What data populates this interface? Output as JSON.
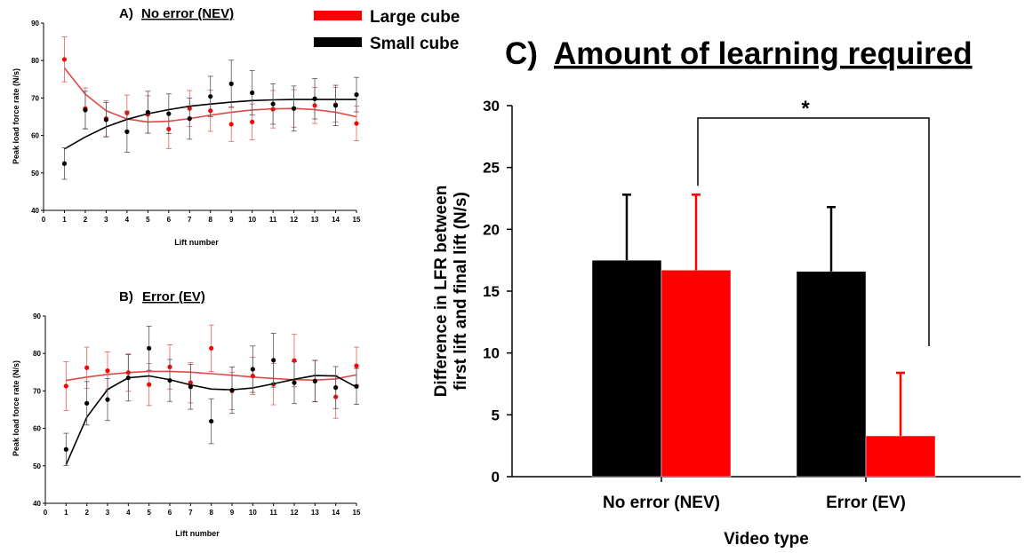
{
  "legend": {
    "entries": [
      {
        "label": "Large cube",
        "color": "#ff0000"
      },
      {
        "label": "Small cube",
        "color": "#000000"
      }
    ],
    "placement": "top-center"
  },
  "colors": {
    "large": "#ff0000",
    "small": "#000000",
    "large_fit": "#e04848"
  },
  "chart_data": [
    {
      "type": "scatter",
      "panel_letter": "A)",
      "title": "No error (NEV)",
      "xlabel": "Lift number",
      "ylabel": "Peak load force rate (N/s)",
      "xlim": [
        0,
        15
      ],
      "ylim": [
        40,
        90
      ],
      "xticks": [
        "0",
        "1",
        "2",
        "3",
        "4",
        "5",
        "6",
        "7",
        "8",
        "9",
        "10",
        "11",
        "12",
        "13",
        "14",
        "15"
      ],
      "yticks": [
        "40",
        "50",
        "60",
        "70",
        "80",
        "90"
      ],
      "x": [
        1,
        2,
        3,
        4,
        5,
        6,
        7,
        8,
        9,
        10,
        11,
        12,
        13,
        14,
        15
      ],
      "series": [
        {
          "name": "Large cube",
          "color": "#ff0000",
          "values": [
            80.3,
            67.2,
            64.5,
            66.0,
            65.6,
            61.7,
            67.2,
            66.6,
            63.0,
            63.6,
            67.0,
            67.2,
            68.0,
            68.2,
            63.2
          ],
          "errors": [
            6.0,
            5.5,
            4.8,
            4.8,
            5.0,
            5.2,
            4.8,
            5.5,
            4.6,
            4.8,
            5.0,
            5.0,
            4.8,
            4.6,
            4.6
          ],
          "fit": [
            78.0,
            71.0,
            66.6,
            64.4,
            63.6,
            63.8,
            64.5,
            65.4,
            66.2,
            66.8,
            67.1,
            67.2,
            66.9,
            66.2,
            65.0
          ]
        },
        {
          "name": "Small cube",
          "color": "#000000",
          "values": [
            52.5,
            66.8,
            64.2,
            61.0,
            66.2,
            65.8,
            64.5,
            70.4,
            73.8,
            71.4,
            68.4,
            67.2,
            69.8,
            68.0,
            70.9
          ],
          "errors": [
            4.2,
            5.0,
            4.6,
            5.5,
            5.6,
            5.3,
            5.5,
            5.4,
            6.3,
            5.9,
            5.4,
            6.0,
            5.4,
            5.4,
            4.6
          ],
          "fit": [
            56.4,
            59.6,
            62.3,
            64.3,
            65.8,
            66.9,
            67.8,
            68.4,
            68.9,
            69.3,
            69.5,
            69.6,
            69.6,
            69.6,
            69.6
          ]
        }
      ]
    },
    {
      "type": "scatter",
      "panel_letter": "B)",
      "title": "Error (EV)",
      "xlabel": "Lift number",
      "ylabel": "Peak load force rate (N/s)",
      "xlim": [
        0,
        15
      ],
      "ylim": [
        40,
        90
      ],
      "xticks": [
        "0",
        "1",
        "2",
        "3",
        "4",
        "5",
        "6",
        "7",
        "8",
        "9",
        "10",
        "11",
        "12",
        "13",
        "14",
        "15"
      ],
      "yticks": [
        "40",
        "50",
        "60",
        "70",
        "80",
        "90"
      ],
      "x": [
        1,
        2,
        3,
        4,
        5,
        6,
        7,
        8,
        9,
        10,
        11,
        12,
        13,
        14,
        15
      ],
      "series": [
        {
          "name": "Large cube",
          "color": "#ff0000",
          "values": [
            71.3,
            76.2,
            75.4,
            74.9,
            71.7,
            76.4,
            72.2,
            81.4,
            70.0,
            74.0,
            71.8,
            78.1,
            72.7,
            68.4,
            76.7
          ],
          "errors": [
            6.5,
            5.5,
            5.0,
            5.0,
            5.6,
            5.9,
            5.4,
            6.2,
            5.0,
            5.0,
            5.5,
            7.0,
            5.5,
            5.7,
            5.0
          ],
          "fit": [
            72.8,
            73.7,
            74.4,
            74.9,
            75.2,
            75.2,
            75.0,
            74.6,
            74.2,
            73.7,
            73.3,
            73.0,
            72.9,
            73.2,
            74.3
          ]
        },
        {
          "name": "Small cube",
          "color": "#000000",
          "values": [
            54.4,
            66.7,
            67.7,
            73.5,
            81.4,
            72.8,
            71.1,
            61.9,
            70.2,
            75.8,
            78.2,
            72.2,
            72.6,
            70.9,
            71.2
          ],
          "errors": [
            4.3,
            5.8,
            5.6,
            6.2,
            5.9,
            5.6,
            6.0,
            6.0,
            6.2,
            6.2,
            7.2,
            5.6,
            5.5,
            5.6,
            4.8
          ],
          "fit": [
            50.3,
            63.0,
            70.4,
            73.5,
            74.0,
            73.0,
            71.6,
            70.5,
            70.3,
            70.8,
            71.9,
            73.1,
            74.1,
            74.0,
            71.0
          ]
        }
      ]
    },
    {
      "type": "bar",
      "panel_letter": "C)",
      "title": "Amount of learning required",
      "xlabel": "Video type",
      "ylabel_lines": [
        "Difference in LFR between",
        "first lift and final lift (N/s)"
      ],
      "ylim": [
        0,
        30
      ],
      "yticks": [
        "0",
        "5",
        "10",
        "15",
        "20",
        "25",
        "30"
      ],
      "categories": [
        "No error (NEV)",
        "Error (EV)"
      ],
      "series": [
        {
          "name": "Small cube",
          "color": "#000000",
          "values": [
            17.5,
            16.6
          ],
          "errors": [
            5.3,
            5.2
          ]
        },
        {
          "name": "Large cube",
          "color": "#ff0000",
          "values": [
            16.7,
            3.3
          ],
          "errors": [
            6.1,
            5.1
          ]
        }
      ],
      "significance": "*"
    }
  ]
}
